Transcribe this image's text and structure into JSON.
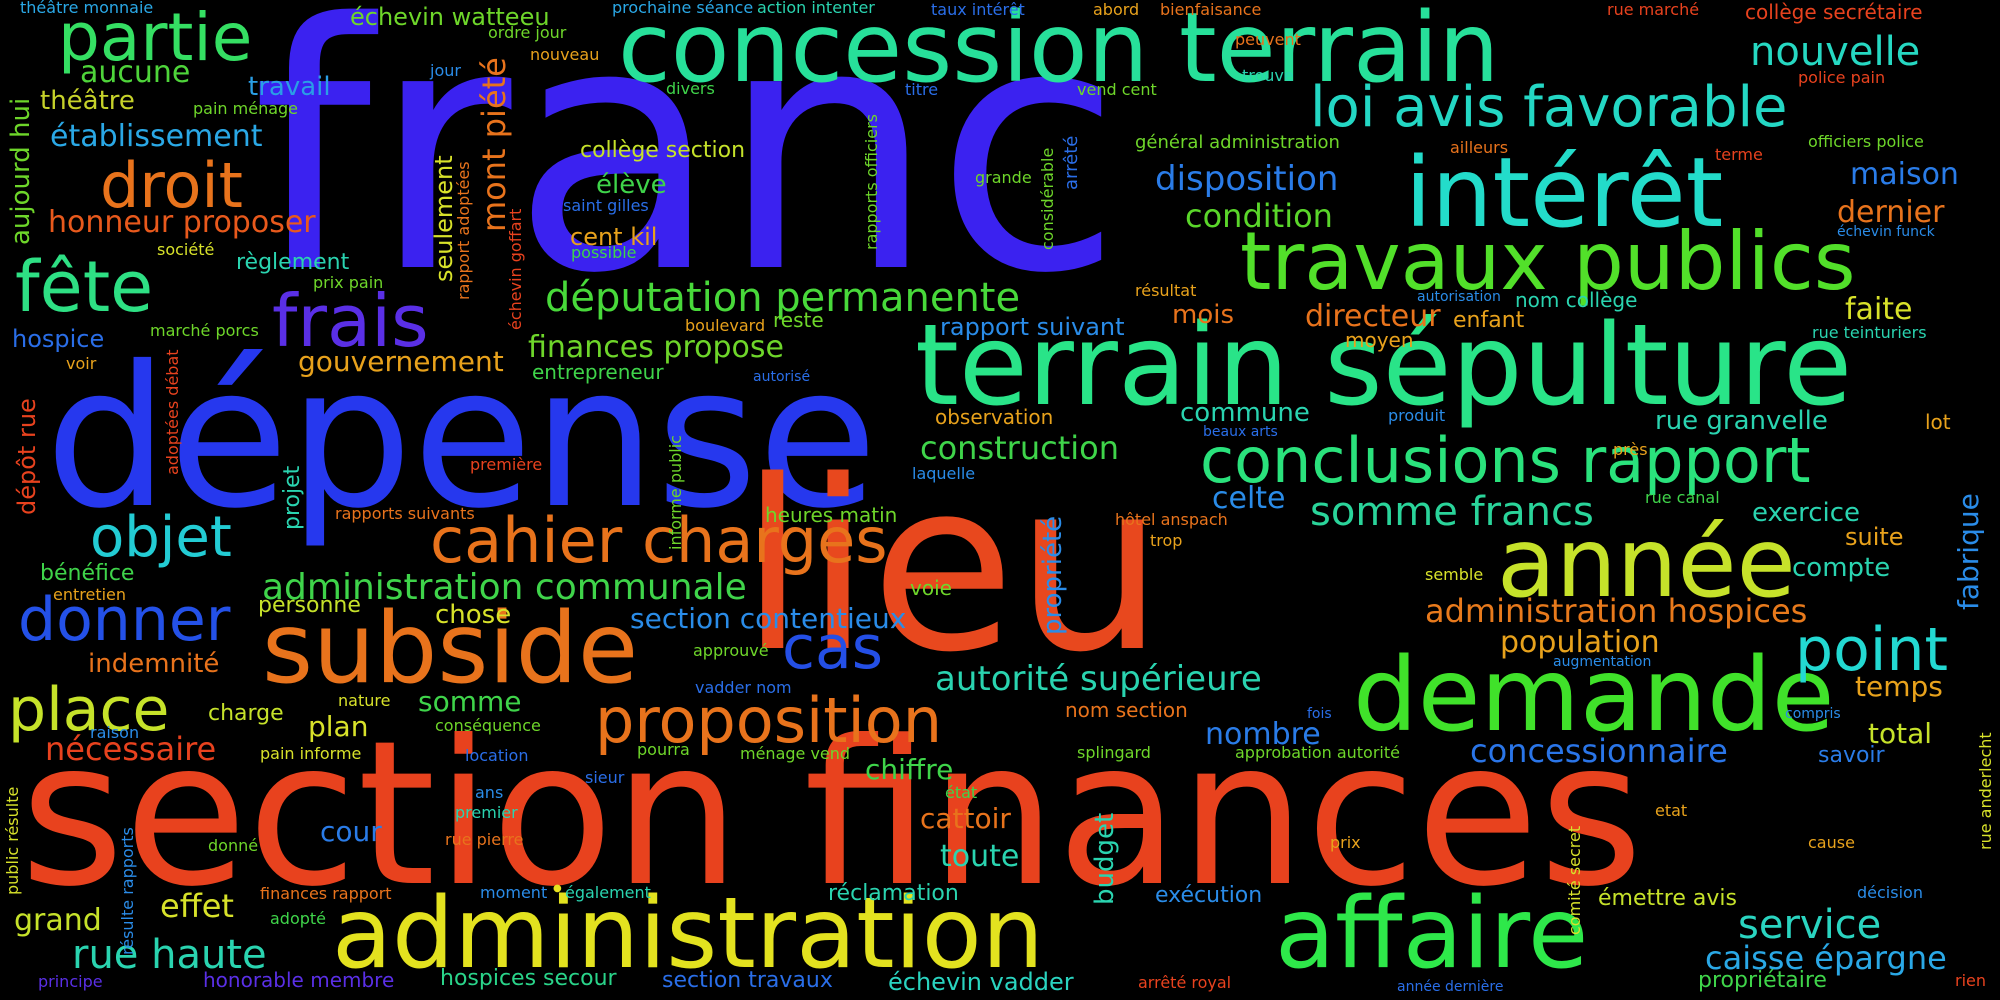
{
  "words": [
    {
      "text": "franc",
      "color": "#3b22f0"
    },
    {
      "text": "section finances",
      "color": "#e8421e"
    },
    {
      "text": "dépense",
      "color": "#2638ee"
    },
    {
      "text": "lieu",
      "color": "#e8481e"
    },
    {
      "text": "concession terrain",
      "color": "#27e09a"
    },
    {
      "text": "terrain sépulture",
      "color": "#29e488"
    },
    {
      "text": "intérêt",
      "color": "#23dcca"
    },
    {
      "text": "travaux publics",
      "color": "#52e02a"
    },
    {
      "text": "administration",
      "color": "#e3e21f"
    },
    {
      "text": "subside",
      "color": "#e8731c"
    },
    {
      "text": "demande",
      "color": "#40e22a"
    },
    {
      "text": "affaire",
      "color": "#2ee84a"
    },
    {
      "text": "année",
      "color": "#c6e22a"
    },
    {
      "text": "conclusions rapport",
      "color": "#2ae27c"
    },
    {
      "text": "loi avis favorable",
      "color": "#24d7c4"
    },
    {
      "text": "proposition",
      "color": "#e8731c"
    },
    {
      "text": "cahier charges",
      "color": "#e8731c"
    },
    {
      "text": "partie",
      "color": "#35df63"
    },
    {
      "text": "frais",
      "color": "#5a2fe6"
    },
    {
      "text": "droit",
      "color": "#e8731c"
    },
    {
      "text": "fête",
      "color": "#2ee084"
    },
    {
      "text": "place",
      "color": "#c6e22a"
    },
    {
      "text": "donner",
      "color": "#2451e8"
    },
    {
      "text": "objet",
      "color": "#23ccd4"
    },
    {
      "text": "point",
      "color": "#23d9d2"
    },
    {
      "text": "cas",
      "color": "#244fe6"
    },
    {
      "text": "députation permanente",
      "color": "#48d93a"
    },
    {
      "text": "administration communale",
      "color": "#3fd44a"
    },
    {
      "text": "rue haute",
      "color": "#2ad4b0"
    },
    {
      "text": "nouvelle",
      "color": "#26d8c2"
    },
    {
      "text": "somme francs",
      "color": "#2ad49a"
    },
    {
      "text": "administration hospices",
      "color": "#e87a1c"
    },
    {
      "text": "autorité supérieure",
      "color": "#2ad4b0"
    },
    {
      "text": "concessionnaire",
      "color": "#2a75e8"
    },
    {
      "text": "service",
      "color": "#2ad4c0"
    },
    {
      "text": "caisse épargne",
      "color": "#2aa8e6"
    },
    {
      "text": "disposition",
      "color": "#2a7ce8"
    },
    {
      "text": "condition",
      "color": "#5ad62a"
    },
    {
      "text": "construction",
      "color": "#3fd44a"
    },
    {
      "text": "établissement",
      "color": "#2aa8e6"
    },
    {
      "text": "honneur proposer",
      "color": "#e8591c"
    },
    {
      "text": "gouvernement",
      "color": "#e8a21c"
    },
    {
      "text": "finances propose",
      "color": "#6ed62a"
    },
    {
      "text": "section contentieux",
      "color": "#2a8ce8"
    },
    {
      "text": "nécessaire",
      "color": "#e8421e"
    },
    {
      "text": "indemnité",
      "color": "#e8731c"
    },
    {
      "text": "effet",
      "color": "#d8e22a"
    },
    {
      "text": "grand",
      "color": "#c6e22a"
    },
    {
      "text": "aucune",
      "color": "#4ed43a"
    },
    {
      "text": "théâtre",
      "color": "#c6d22a"
    },
    {
      "text": "travail",
      "color": "#2a9ee6"
    },
    {
      "text": "règlement",
      "color": "#2ad4b0"
    },
    {
      "text": "mont piété",
      "color": "#e8731c",
      "vertical": true
    },
    {
      "text": "aujourd hui",
      "color": "#6ed62a",
      "vertical": true
    },
    {
      "text": "seulement",
      "color": "#d8e22a",
      "vertical": true
    },
    {
      "text": "échevin watteeu",
      "color": "#6ed62a"
    },
    {
      "text": "collège section",
      "color": "#c6e22a"
    },
    {
      "text": "élève",
      "color": "#3fd44a"
    },
    {
      "text": "cent kil",
      "color": "#e8a21c"
    },
    {
      "text": "maison",
      "color": "#2a7ce8"
    },
    {
      "text": "dernier",
      "color": "#e8731c"
    },
    {
      "text": "faite",
      "color": "#d8e22a"
    },
    {
      "text": "directeur",
      "color": "#e8731c"
    },
    {
      "text": "mois",
      "color": "#e8731c"
    },
    {
      "text": "rapport suivant",
      "color": "#2a8ce8"
    },
    {
      "text": "commune",
      "color": "#2ad4b0"
    },
    {
      "text": "celte",
      "color": "#2a8ce8"
    },
    {
      "text": "exercice",
      "color": "#2ad4b0"
    },
    {
      "text": "compte",
      "color": "#2ad4b0"
    },
    {
      "text": "suite",
      "color": "#e8a21c"
    },
    {
      "text": "temps",
      "color": "#e8a21c"
    },
    {
      "text": "total",
      "color": "#c6e22a"
    },
    {
      "text": "population",
      "color": "#e8a21c"
    },
    {
      "text": "chiffre",
      "color": "#3fd44a"
    },
    {
      "text": "toute",
      "color": "#2ad4b0"
    },
    {
      "text": "cattoir",
      "color": "#e8731c"
    },
    {
      "text": "nombre",
      "color": "#2a7ce8"
    },
    {
      "text": "somme",
      "color": "#3fd44a"
    },
    {
      "text": "plan",
      "color": "#d8e22a"
    },
    {
      "text": "chose",
      "color": "#d8e22a"
    },
    {
      "text": "cour",
      "color": "#2a7ce8"
    },
    {
      "text": "rue granvelle",
      "color": "#2ad4b0"
    },
    {
      "text": "fabrique",
      "color": "#2a8ce8",
      "vertical": true
    },
    {
      "text": "hospice",
      "color": "#2a6ee8"
    },
    {
      "text": "bénéfice",
      "color": "#3fd44a"
    },
    {
      "text": "dépôt rue",
      "color": "#e8421e",
      "vertical": true
    },
    {
      "text": "personne",
      "color": "#c6e22a"
    },
    {
      "text": "charge",
      "color": "#c6e22a"
    },
    {
      "text": "exécution",
      "color": "#2a8ce8"
    },
    {
      "text": "réclamation",
      "color": "#2ad4b0"
    },
    {
      "text": "émettre avis",
      "color": "#c6e22a"
    },
    {
      "text": "échevin vadder",
      "color": "#2ad4c0"
    },
    {
      "text": "honorable membre",
      "color": "#5a2fe6"
    },
    {
      "text": "hospices secour",
      "color": "#2ad48a"
    },
    {
      "text": "section travaux",
      "color": "#2a6ee8"
    },
    {
      "text": "propriétaire",
      "color": "#3fd44a"
    },
    {
      "text": "savoir",
      "color": "#2a7ce8"
    },
    {
      "text": "budget",
      "color": "#2ad4b0",
      "vertical": true
    },
    {
      "text": "propriété",
      "color": "#2a8ce8",
      "vertical": true
    },
    {
      "text": "projet",
      "color": "#2ad4b0",
      "vertical": true
    },
    {
      "text": "nom collège",
      "color": "#2ad4b0"
    },
    {
      "text": "enfant",
      "color": "#e8a21c"
    },
    {
      "text": "moyen",
      "color": "#e8a21c"
    },
    {
      "text": "observation",
      "color": "#e8a21c"
    },
    {
      "text": "nom section",
      "color": "#e8731c"
    },
    {
      "text": "voie",
      "color": "#6ed62a"
    },
    {
      "text": "reste",
      "color": "#6ed62a"
    },
    {
      "text": "entrepreneur",
      "color": "#3fd44a"
    },
    {
      "text": "heures matin",
      "color": "#6ed62a"
    },
    {
      "text": "théâtre monnaie",
      "color": "#2aa8e6"
    },
    {
      "text": "ordre jour",
      "color": "#6ed62a"
    },
    {
      "text": "nouveau",
      "color": "#e8a21c"
    },
    {
      "text": "jour",
      "color": "#2a8ce8"
    },
    {
      "text": "pain ménage",
      "color": "#6ed62a"
    },
    {
      "text": "prochaine séance",
      "color": "#2aa8e6"
    },
    {
      "text": "action intenter",
      "color": "#2ad4b0"
    },
    {
      "text": "taux intérêt",
      "color": "#2a6ee8"
    },
    {
      "text": "abord",
      "color": "#e8a21c"
    },
    {
      "text": "bienfaisance",
      "color": "#e8731c"
    },
    {
      "text": "rue marché",
      "color": "#e8421e"
    },
    {
      "text": "collège secrétaire",
      "color": "#e8421e"
    },
    {
      "text": "police pain",
      "color": "#e8421e"
    },
    {
      "text": "officiers police",
      "color": "#6ed62a"
    },
    {
      "text": "terme",
      "color": "#e8421e"
    },
    {
      "text": "ailleurs",
      "color": "#e8731c"
    },
    {
      "text": "échevin funck",
      "color": "#2a8ce8"
    },
    {
      "text": "peuvent",
      "color": "#e8731c"
    },
    {
      "text": "trouve",
      "color": "#2ad4b0"
    },
    {
      "text": "vend cent",
      "color": "#6ed62a"
    },
    {
      "text": "titre",
      "color": "#2a6ee8"
    },
    {
      "text": "divers",
      "color": "#3fd44a"
    },
    {
      "text": "général administration",
      "color": "#6ed62a"
    },
    {
      "text": "grande",
      "color": "#6ed62a"
    },
    {
      "text": "saint gilles",
      "color": "#2a6ee8"
    },
    {
      "text": "possible",
      "color": "#3fd44a"
    },
    {
      "text": "résultat",
      "color": "#e8a21c"
    },
    {
      "text": "autorisation",
      "color": "#2a8ce8"
    },
    {
      "text": "boulevard",
      "color": "#e8a21c"
    },
    {
      "text": "autorisé",
      "color": "#2a6ee8"
    },
    {
      "text": "produit",
      "color": "#2a8ce8"
    },
    {
      "text": "beaux arts",
      "color": "#2a6ee8"
    },
    {
      "text": "près",
      "color": "#e8a21c"
    },
    {
      "text": "lot",
      "color": "#e8a21c"
    },
    {
      "text": "rue teinturiers",
      "color": "#2ad4b0"
    },
    {
      "text": "laquelle",
      "color": "#2a8ce8"
    },
    {
      "text": "rue canal",
      "color": "#3fd44a"
    },
    {
      "text": "hôtel anspach",
      "color": "#e8731c"
    },
    {
      "text": "trop",
      "color": "#e8a21c"
    },
    {
      "text": "semble",
      "color": "#d8e22a"
    },
    {
      "text": "augmentation",
      "color": "#2a8ce8"
    },
    {
      "text": "compris",
      "color": "#2a8ce8"
    },
    {
      "text": "fois",
      "color": "#2a6ee8"
    },
    {
      "text": "splingard",
      "color": "#6ed62a"
    },
    {
      "text": "approbation autorité",
      "color": "#6ed62a"
    },
    {
      "text": "état",
      "color": "#3fd44a"
    },
    {
      "text": "etat",
      "color": "#e8a21c"
    },
    {
      "text": "cause",
      "color": "#e8a21c"
    },
    {
      "text": "prix",
      "color": "#e8a21c"
    },
    {
      "text": "décision",
      "color": "#2a8ce8"
    },
    {
      "text": "année dernière",
      "color": "#2a6ee8"
    },
    {
      "text": "rien",
      "color": "#e8421e"
    },
    {
      "text": "arrêté royal",
      "color": "#e8421e"
    },
    {
      "text": "moment",
      "color": "#2a8ce8"
    },
    {
      "text": "également",
      "color": "#2ad4b0"
    },
    {
      "text": "finances rapport",
      "color": "#e8731c"
    },
    {
      "text": "adopté",
      "color": "#3fd44a"
    },
    {
      "text": "principe",
      "color": "#5a2fe6"
    },
    {
      "text": "premier",
      "color": "#2ad4b0"
    },
    {
      "text": "ans",
      "color": "#2a8ce8"
    },
    {
      "text": "rue pierre",
      "color": "#e8731c"
    },
    {
      "text": "donné",
      "color": "#6ed62a"
    },
    {
      "text": "sieur",
      "color": "#2a6ee8"
    },
    {
      "text": "location",
      "color": "#2a6ee8"
    },
    {
      "text": "pourra",
      "color": "#6ed62a"
    },
    {
      "text": "ménage vend",
      "color": "#6ed62a"
    },
    {
      "text": "pain informe",
      "color": "#d8e22a"
    },
    {
      "text": "raison",
      "color": "#2a8ce8"
    },
    {
      "text": "conséquence",
      "color": "#6ed62a"
    },
    {
      "text": "nature",
      "color": "#d8e22a"
    },
    {
      "text": "approuvé",
      "color": "#6ed62a"
    },
    {
      "text": "vadder nom",
      "color": "#2a6ee8"
    },
    {
      "text": "entretien",
      "color": "#e8a21c"
    },
    {
      "text": "voir",
      "color": "#e8a21c"
    },
    {
      "text": "marché porcs",
      "color": "#6ed62a"
    },
    {
      "text": "société",
      "color": "#d8e22a"
    },
    {
      "text": "prix pain",
      "color": "#6ed62a"
    },
    {
      "text": "première",
      "color": "#e8421e"
    },
    {
      "text": "rapports suivants",
      "color": "#e8731c"
    },
    {
      "text": "informe public",
      "color": "#6ed62a",
      "vertical": true
    },
    {
      "text": "rapports officiers",
      "color": "#6ed62a",
      "vertical": true
    },
    {
      "text": "considérable",
      "color": "#6ed62a",
      "vertical": true
    },
    {
      "text": "arrêté",
      "color": "#2a6ee8",
      "vertical": true
    },
    {
      "text": "rapport adoptées",
      "color": "#e8731c",
      "vertical": true
    },
    {
      "text": "échevin goffart",
      "color": "#e8421e",
      "vertical": true
    },
    {
      "text": "adoptées débat",
      "color": "#e8421e",
      "vertical": true
    },
    {
      "text": "public résulte",
      "color": "#d8e22a",
      "vertical": true
    },
    {
      "text": "résulte rapports",
      "color": "#2a8ce8",
      "vertical": true
    },
    {
      "text": "comité secret",
      "color": "#d8e22a",
      "vertical": true
    },
    {
      "text": "rue anderlecht",
      "color": "#d8e22a",
      "vertical": true
    }
  ]
}
